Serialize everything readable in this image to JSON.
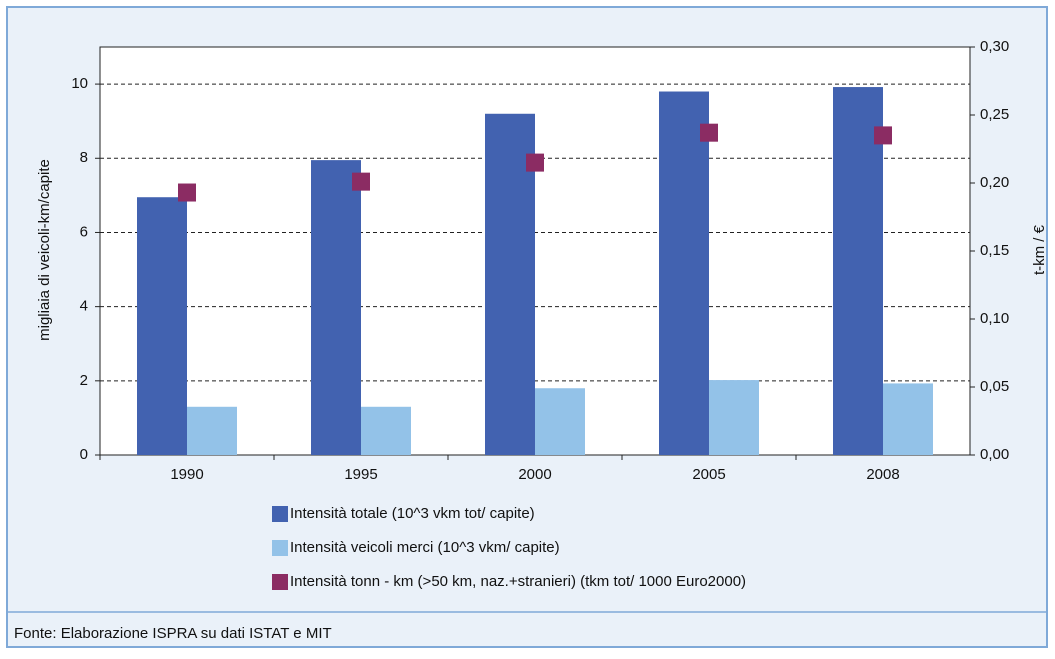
{
  "chart_data": {
    "type": "bar",
    "y_label": "migliaia di veicoli-km/capite",
    "y2_label": "t-km / €",
    "source": "Fonte: Elaborazione  ISPRA su dati ISTAT e MIT",
    "categories": [
      "1990",
      "1995",
      "2000",
      "2005",
      "2008"
    ],
    "series": [
      {
        "name": "Intensità totale (10^3 vkm tot/ capite)",
        "color": "#4262b0",
        "values": [
          6.95,
          7.95,
          9.2,
          9.8,
          9.92
        ]
      },
      {
        "name": "Intensità veicoli merci (10^3 vkm/ capite)",
        "color": "#93c2e8",
        "values": [
          1.3,
          1.3,
          1.8,
          2.02,
          1.93
        ]
      },
      {
        "name": "Intensità tonn - km (>50 km, naz.+stranieri) (tkm tot/ 1000 Euro2000)",
        "color": "#8b2c63",
        "type": "scatter",
        "axis": "y2",
        "values": [
          0.193,
          0.201,
          0.215,
          0.237,
          0.235
        ]
      }
    ],
    "ylim": [
      0,
      11
    ],
    "yticks": [
      0,
      2,
      4,
      6,
      8,
      10
    ],
    "y2lim": [
      0,
      0.3
    ],
    "y2ticks": [
      {
        "value": 0,
        "label": "0,00"
      },
      {
        "value": 0.05,
        "label": "0,05"
      },
      {
        "value": 0.1,
        "label": "0,10"
      },
      {
        "value": 0.15,
        "label": "0,15"
      },
      {
        "value": 0.2,
        "label": "0,20"
      },
      {
        "value": 0.25,
        "label": "0,25"
      },
      {
        "value": 0.3,
        "label": "0,30"
      }
    ],
    "grid": true
  }
}
